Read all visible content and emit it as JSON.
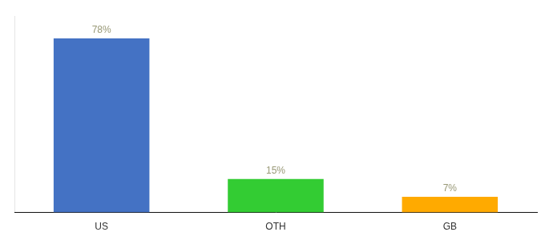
{
  "chart_data": {
    "type": "bar",
    "categories": [
      "US",
      "OTH",
      "GB"
    ],
    "values": [
      78,
      15,
      7
    ],
    "value_labels": [
      "78%",
      "15%",
      "7%"
    ],
    "data_labels": true,
    "colors": [
      "#4472c4",
      "#33cc33",
      "#ffaa00"
    ],
    "ylim": [
      0,
      88
    ],
    "tick_labels": "x",
    "grid": false
  }
}
